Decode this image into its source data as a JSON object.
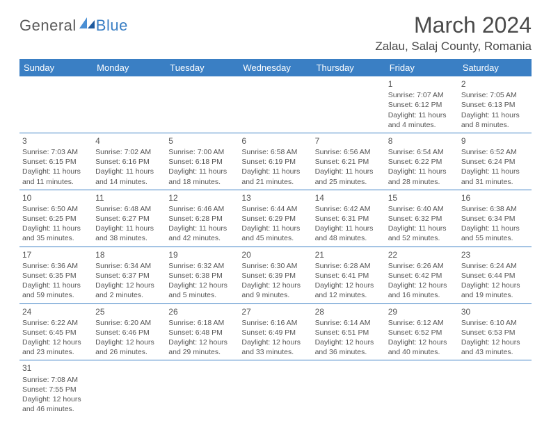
{
  "brand": {
    "part1": "General",
    "part2": "Blue"
  },
  "title": "March 2024",
  "location": "Zalau, Salaj County, Romania",
  "colors": {
    "accent": "#3a7fc4",
    "text": "#4a4a4a",
    "bg": "#ffffff"
  },
  "dayHeaders": [
    "Sunday",
    "Monday",
    "Tuesday",
    "Wednesday",
    "Thursday",
    "Friday",
    "Saturday"
  ],
  "weeks": [
    [
      null,
      null,
      null,
      null,
      null,
      {
        "n": "1",
        "sr": "Sunrise: 7:07 AM",
        "ss": "Sunset: 6:12 PM",
        "d1": "Daylight: 11 hours",
        "d2": "and 4 minutes."
      },
      {
        "n": "2",
        "sr": "Sunrise: 7:05 AM",
        "ss": "Sunset: 6:13 PM",
        "d1": "Daylight: 11 hours",
        "d2": "and 8 minutes."
      }
    ],
    [
      {
        "n": "3",
        "sr": "Sunrise: 7:03 AM",
        "ss": "Sunset: 6:15 PM",
        "d1": "Daylight: 11 hours",
        "d2": "and 11 minutes."
      },
      {
        "n": "4",
        "sr": "Sunrise: 7:02 AM",
        "ss": "Sunset: 6:16 PM",
        "d1": "Daylight: 11 hours",
        "d2": "and 14 minutes."
      },
      {
        "n": "5",
        "sr": "Sunrise: 7:00 AM",
        "ss": "Sunset: 6:18 PM",
        "d1": "Daylight: 11 hours",
        "d2": "and 18 minutes."
      },
      {
        "n": "6",
        "sr": "Sunrise: 6:58 AM",
        "ss": "Sunset: 6:19 PM",
        "d1": "Daylight: 11 hours",
        "d2": "and 21 minutes."
      },
      {
        "n": "7",
        "sr": "Sunrise: 6:56 AM",
        "ss": "Sunset: 6:21 PM",
        "d1": "Daylight: 11 hours",
        "d2": "and 25 minutes."
      },
      {
        "n": "8",
        "sr": "Sunrise: 6:54 AM",
        "ss": "Sunset: 6:22 PM",
        "d1": "Daylight: 11 hours",
        "d2": "and 28 minutes."
      },
      {
        "n": "9",
        "sr": "Sunrise: 6:52 AM",
        "ss": "Sunset: 6:24 PM",
        "d1": "Daylight: 11 hours",
        "d2": "and 31 minutes."
      }
    ],
    [
      {
        "n": "10",
        "sr": "Sunrise: 6:50 AM",
        "ss": "Sunset: 6:25 PM",
        "d1": "Daylight: 11 hours",
        "d2": "and 35 minutes."
      },
      {
        "n": "11",
        "sr": "Sunrise: 6:48 AM",
        "ss": "Sunset: 6:27 PM",
        "d1": "Daylight: 11 hours",
        "d2": "and 38 minutes."
      },
      {
        "n": "12",
        "sr": "Sunrise: 6:46 AM",
        "ss": "Sunset: 6:28 PM",
        "d1": "Daylight: 11 hours",
        "d2": "and 42 minutes."
      },
      {
        "n": "13",
        "sr": "Sunrise: 6:44 AM",
        "ss": "Sunset: 6:29 PM",
        "d1": "Daylight: 11 hours",
        "d2": "and 45 minutes."
      },
      {
        "n": "14",
        "sr": "Sunrise: 6:42 AM",
        "ss": "Sunset: 6:31 PM",
        "d1": "Daylight: 11 hours",
        "d2": "and 48 minutes."
      },
      {
        "n": "15",
        "sr": "Sunrise: 6:40 AM",
        "ss": "Sunset: 6:32 PM",
        "d1": "Daylight: 11 hours",
        "d2": "and 52 minutes."
      },
      {
        "n": "16",
        "sr": "Sunrise: 6:38 AM",
        "ss": "Sunset: 6:34 PM",
        "d1": "Daylight: 11 hours",
        "d2": "and 55 minutes."
      }
    ],
    [
      {
        "n": "17",
        "sr": "Sunrise: 6:36 AM",
        "ss": "Sunset: 6:35 PM",
        "d1": "Daylight: 11 hours",
        "d2": "and 59 minutes."
      },
      {
        "n": "18",
        "sr": "Sunrise: 6:34 AM",
        "ss": "Sunset: 6:37 PM",
        "d1": "Daylight: 12 hours",
        "d2": "and 2 minutes."
      },
      {
        "n": "19",
        "sr": "Sunrise: 6:32 AM",
        "ss": "Sunset: 6:38 PM",
        "d1": "Daylight: 12 hours",
        "d2": "and 5 minutes."
      },
      {
        "n": "20",
        "sr": "Sunrise: 6:30 AM",
        "ss": "Sunset: 6:39 PM",
        "d1": "Daylight: 12 hours",
        "d2": "and 9 minutes."
      },
      {
        "n": "21",
        "sr": "Sunrise: 6:28 AM",
        "ss": "Sunset: 6:41 PM",
        "d1": "Daylight: 12 hours",
        "d2": "and 12 minutes."
      },
      {
        "n": "22",
        "sr": "Sunrise: 6:26 AM",
        "ss": "Sunset: 6:42 PM",
        "d1": "Daylight: 12 hours",
        "d2": "and 16 minutes."
      },
      {
        "n": "23",
        "sr": "Sunrise: 6:24 AM",
        "ss": "Sunset: 6:44 PM",
        "d1": "Daylight: 12 hours",
        "d2": "and 19 minutes."
      }
    ],
    [
      {
        "n": "24",
        "sr": "Sunrise: 6:22 AM",
        "ss": "Sunset: 6:45 PM",
        "d1": "Daylight: 12 hours",
        "d2": "and 23 minutes."
      },
      {
        "n": "25",
        "sr": "Sunrise: 6:20 AM",
        "ss": "Sunset: 6:46 PM",
        "d1": "Daylight: 12 hours",
        "d2": "and 26 minutes."
      },
      {
        "n": "26",
        "sr": "Sunrise: 6:18 AM",
        "ss": "Sunset: 6:48 PM",
        "d1": "Daylight: 12 hours",
        "d2": "and 29 minutes."
      },
      {
        "n": "27",
        "sr": "Sunrise: 6:16 AM",
        "ss": "Sunset: 6:49 PM",
        "d1": "Daylight: 12 hours",
        "d2": "and 33 minutes."
      },
      {
        "n": "28",
        "sr": "Sunrise: 6:14 AM",
        "ss": "Sunset: 6:51 PM",
        "d1": "Daylight: 12 hours",
        "d2": "and 36 minutes."
      },
      {
        "n": "29",
        "sr": "Sunrise: 6:12 AM",
        "ss": "Sunset: 6:52 PM",
        "d1": "Daylight: 12 hours",
        "d2": "and 40 minutes."
      },
      {
        "n": "30",
        "sr": "Sunrise: 6:10 AM",
        "ss": "Sunset: 6:53 PM",
        "d1": "Daylight: 12 hours",
        "d2": "and 43 minutes."
      }
    ],
    [
      {
        "n": "31",
        "sr": "Sunrise: 7:08 AM",
        "ss": "Sunset: 7:55 PM",
        "d1": "Daylight: 12 hours",
        "d2": "and 46 minutes."
      },
      null,
      null,
      null,
      null,
      null,
      null
    ]
  ]
}
